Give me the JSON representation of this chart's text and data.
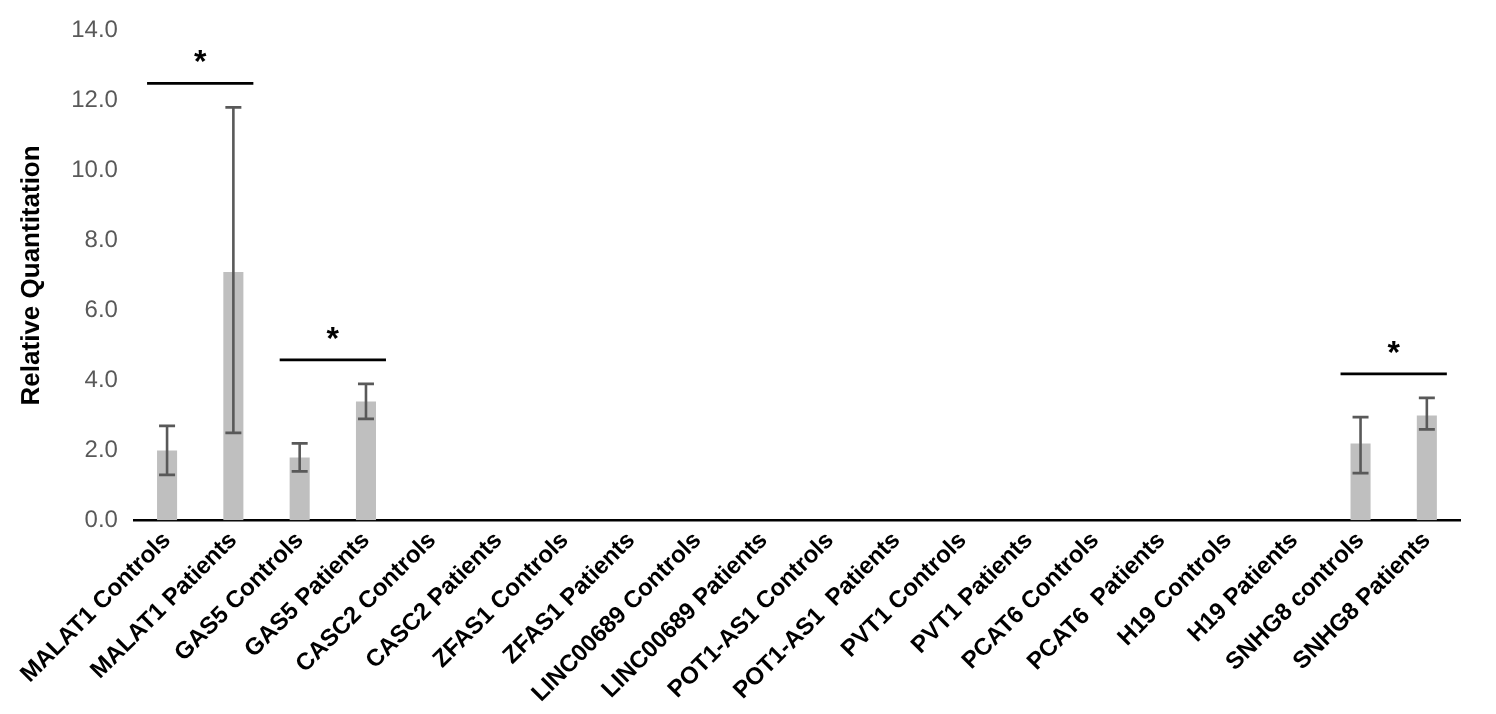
{
  "chart_data": {
    "type": "bar",
    "ylabel": "Relative Quantitation",
    "categories": [
      "MALAT1 Controls",
      "MALAT1 Patients",
      "GAS5 Controls",
      "GAS5 Patients",
      "CASC2 Controls",
      "CASC2 Patients",
      "ZFAS1 Controls",
      "ZFAS1 Patients",
      "LINC00689 Controls",
      "LINC00689 Patients",
      "POT1-AS1 Controls",
      "POT1-AS1  Patients",
      "PVT1 Controls",
      "PVT1 Patients",
      "PCAT6 Controls",
      "PCAT6  Patients",
      "H19 Controls",
      "H19 Patients",
      "SNHG8 controls",
      "SNHG8 Patients"
    ],
    "values": [
      2.0,
      7.1,
      1.8,
      3.4,
      null,
      null,
      null,
      null,
      null,
      null,
      null,
      null,
      null,
      null,
      null,
      null,
      null,
      null,
      2.2,
      3.0
    ],
    "errors": [
      [
        1.3,
        2.7
      ],
      [
        2.5,
        11.8
      ],
      [
        1.4,
        2.2
      ],
      [
        2.9,
        3.9
      ],
      null,
      null,
      null,
      null,
      null,
      null,
      null,
      null,
      null,
      null,
      null,
      null,
      null,
      null,
      [
        1.35,
        2.95
      ],
      [
        2.6,
        3.5
      ]
    ],
    "color": "#bfbfbf",
    "ylim": [
      0,
      14
    ],
    "yticks": [
      {
        "value": 0,
        "label": "0.0"
      },
      {
        "value": 2,
        "label": "2.0"
      },
      {
        "value": 4,
        "label": "4.0"
      },
      {
        "value": 6,
        "label": "6.0"
      },
      {
        "value": 8,
        "label": "8.0"
      },
      {
        "value": 10,
        "label": "10.0"
      },
      {
        "value": 12,
        "label": "12.0"
      },
      {
        "value": 14,
        "label": "14.0"
      }
    ],
    "annotations": [
      "*",
      "*",
      "*"
    ],
    "grid": false,
    "legend": false
  }
}
